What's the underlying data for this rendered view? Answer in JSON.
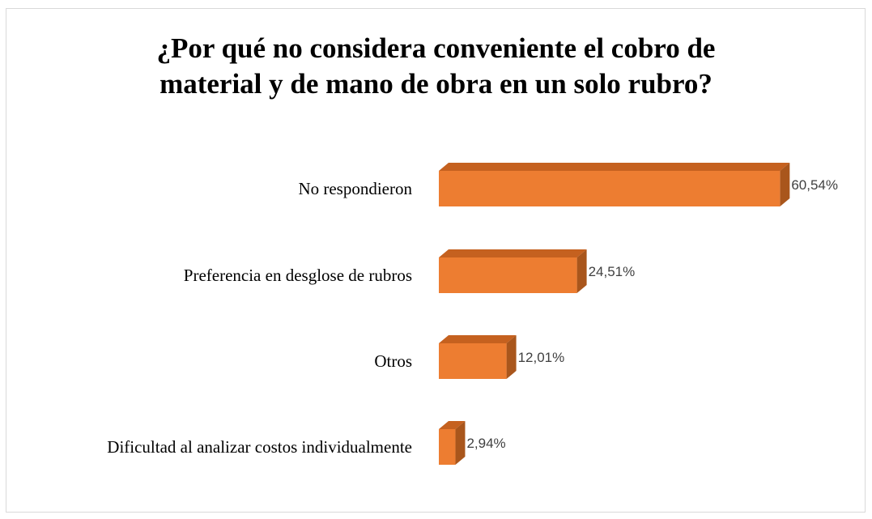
{
  "colors": {
    "bar_front": "#ED7D31",
    "bar_top": "#C5611F",
    "bar_side": "#A9561C",
    "frame_border": "#d9d9d9"
  },
  "chart_data": {
    "type": "bar",
    "orientation": "horizontal",
    "style": "3d",
    "title_lines": [
      "¿Por qué no considera conveniente el cobro de",
      "material y de mano de obra en un solo rubro?"
    ],
    "categories": [
      "No respondieron",
      "Preferencia en desglose de rubros",
      "Otros",
      "Dificultad al analizar costos individualmente"
    ],
    "values": [
      60.54,
      24.51,
      12.01,
      2.94
    ],
    "data_labels": [
      "60,54%",
      "24,51%",
      "12,01%",
      "2,94%"
    ],
    "unit": "%",
    "grid": false,
    "legend": "none"
  }
}
